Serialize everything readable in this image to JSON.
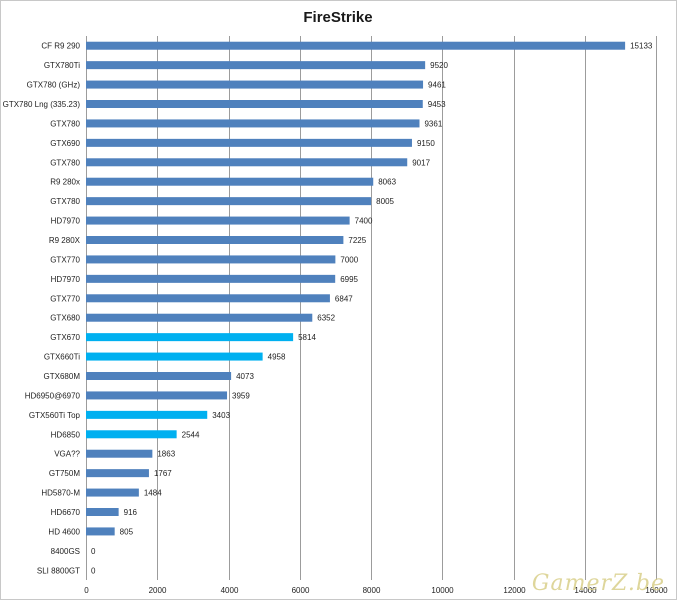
{
  "chart_data": {
    "type": "bar",
    "orientation": "horizontal",
    "title": "FireStrike",
    "categories": [
      "CF R9 290",
      "GTX780Ti",
      "GTX780 (GHz)",
      "GTX780 Lng (335.23)",
      "GTX780",
      "GTX690",
      "GTX780",
      "R9 280x",
      "GTX780",
      "HD7970",
      "R9 280X",
      "GTX770",
      "HD7970",
      "GTX770",
      "GTX680",
      "GTX670",
      "GTX660Ti",
      "GTX680M",
      "HD6950@6970",
      "GTX560Ti Top",
      "HD6850",
      "VGA??",
      "GT750M",
      "HD5870-M",
      "HD6670",
      "HD 4600",
      "8400GS",
      "SLI 8800GT"
    ],
    "values": [
      15133,
      9520,
      9461,
      9453,
      9361,
      9150,
      9017,
      8063,
      8005,
      7400,
      7225,
      7000,
      6995,
      6847,
      6352,
      5814,
      4958,
      4073,
      3959,
      3403,
      2544,
      1863,
      1767,
      1484,
      916,
      805,
      0,
      0
    ],
    "highlight": [
      false,
      false,
      false,
      false,
      false,
      false,
      false,
      false,
      false,
      false,
      false,
      false,
      false,
      false,
      false,
      true,
      true,
      false,
      false,
      true,
      true,
      false,
      false,
      false,
      false,
      false,
      false,
      false
    ],
    "xlim": [
      0,
      16000
    ],
    "xticks": [
      0,
      2000,
      4000,
      6000,
      8000,
      10000,
      12000,
      14000,
      16000
    ],
    "xtick_labels": [
      "0",
      "2000",
      "4000",
      "6000",
      "8000",
      "10000",
      "12000",
      "14000",
      "16000"
    ],
    "xlabel": "",
    "ylabel": "",
    "grid": true,
    "colors": {
      "default": "#4f81bd",
      "highlight": "#00b0f0"
    }
  },
  "watermark": "GamerZ.be"
}
